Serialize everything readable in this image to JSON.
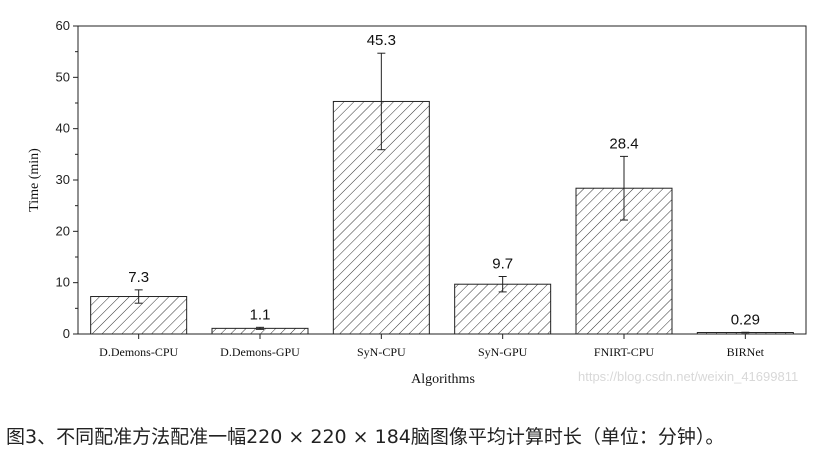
{
  "chart_data": {
    "type": "bar",
    "categories": [
      "D.Demons-CPU",
      "D.Demons-GPU",
      "SyN-CPU",
      "SyN-GPU",
      "FNIRT-CPU",
      "BIRNet"
    ],
    "values": [
      7.3,
      1.1,
      45.3,
      9.7,
      28.4,
      0.29
    ],
    "value_labels": [
      "7.3",
      "1.1",
      "45.3",
      "9.7",
      "28.4",
      "0.29"
    ],
    "error_bars": [
      1.3,
      0.2,
      9.4,
      1.5,
      6.2,
      0.05
    ],
    "xlabel": "Algorithms",
    "ylabel": "Time (min)",
    "ylim": [
      0,
      60
    ],
    "yticks": [
      0,
      10,
      20,
      30,
      40,
      50,
      60
    ],
    "bar_fill": "hatched",
    "grid": false
  },
  "watermark": "https://blog.csdn.net/weixin_41699811",
  "caption": "图3、不同配准方法配准一幅220 × 220 × 184脑图像平均计算时长（单位：分钟）。"
}
